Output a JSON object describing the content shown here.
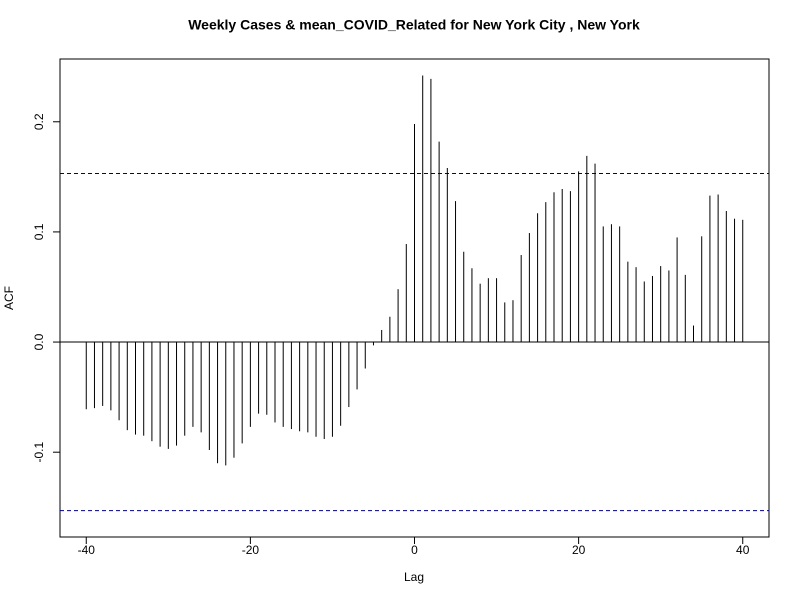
{
  "chart_data": {
    "type": "acf",
    "title": "Weekly Cases & mean_COVID_Related for New York City , New York",
    "xlabel": "Lag",
    "ylabel": "ACF",
    "x": [
      -40,
      -39,
      -38,
      -37,
      -36,
      -35,
      -34,
      -33,
      -32,
      -31,
      -30,
      -29,
      -28,
      -27,
      -26,
      -25,
      -24,
      -23,
      -22,
      -21,
      -20,
      -19,
      -18,
      -17,
      -16,
      -15,
      -14,
      -13,
      -12,
      -11,
      -10,
      -9,
      -8,
      -7,
      -6,
      -5,
      -4,
      -3,
      -2,
      -1,
      0,
      1,
      2,
      3,
      4,
      5,
      6,
      7,
      8,
      9,
      10,
      11,
      12,
      13,
      14,
      15,
      16,
      17,
      18,
      19,
      20,
      21,
      22,
      23,
      24,
      25,
      26,
      27,
      28,
      29,
      30,
      31,
      32,
      33,
      34,
      35,
      36,
      37,
      38,
      39,
      40
    ],
    "values": [
      -0.061,
      -0.06,
      -0.058,
      -0.062,
      -0.071,
      -0.08,
      -0.084,
      -0.085,
      -0.09,
      -0.095,
      -0.097,
      -0.094,
      -0.085,
      -0.077,
      -0.082,
      -0.098,
      -0.11,
      -0.112,
      -0.105,
      -0.092,
      -0.077,
      -0.065,
      -0.066,
      -0.073,
      -0.077,
      -0.079,
      -0.081,
      -0.082,
      -0.086,
      -0.088,
      -0.086,
      -0.076,
      -0.059,
      -0.043,
      -0.024,
      -0.003,
      0.011,
      0.023,
      0.048,
      0.089,
      0.198,
      0.242,
      0.239,
      0.182,
      0.158,
      0.128,
      0.082,
      0.067,
      0.053,
      0.058,
      0.058,
      0.036,
      0.038,
      0.079,
      0.099,
      0.117,
      0.127,
      0.136,
      0.139,
      0.137,
      0.155,
      0.169,
      0.162,
      0.105,
      0.107,
      0.105,
      0.073,
      0.068,
      0.055,
      0.06,
      0.069,
      0.065,
      0.095,
      0.061,
      0.015,
      0.096,
      0.133,
      0.134,
      0.119,
      0.112,
      0.111
    ],
    "color": "#000000",
    "hlines": [
      0.153,
      -0.153
    ],
    "hline_color": "#00008b",
    "xlim": [
      -43.2,
      43.2
    ],
    "ylim": [
      -0.177,
      0.257
    ],
    "xticks": [
      -40,
      -20,
      0,
      20,
      40
    ],
    "yticks": [
      -0.1,
      {
        "value": 0,
        "label": "0.0"
      },
      0.1,
      0.2
    ]
  }
}
